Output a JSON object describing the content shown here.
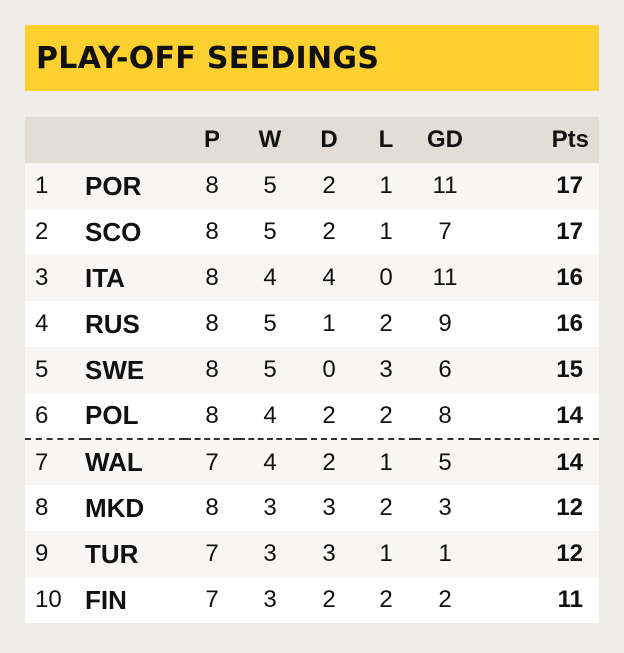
{
  "title": "PLAY-OFF SEEDINGS",
  "columns": [
    "P",
    "W",
    "D",
    "L",
    "GD",
    "Pts"
  ],
  "rows": [
    {
      "pos": "1",
      "team": "POR",
      "p": "8",
      "w": "5",
      "d": "2",
      "l": "1",
      "gd": "11",
      "pts": "17"
    },
    {
      "pos": "2",
      "team": "SCO",
      "p": "8",
      "w": "5",
      "d": "2",
      "l": "1",
      "gd": "7",
      "pts": "17"
    },
    {
      "pos": "3",
      "team": "ITA",
      "p": "8",
      "w": "4",
      "d": "4",
      "l": "0",
      "gd": "11",
      "pts": "16"
    },
    {
      "pos": "4",
      "team": "RUS",
      "p": "8",
      "w": "5",
      "d": "1",
      "l": "2",
      "gd": "9",
      "pts": "16"
    },
    {
      "pos": "5",
      "team": "SWE",
      "p": "8",
      "w": "5",
      "d": "0",
      "l": "3",
      "gd": "6",
      "pts": "15"
    },
    {
      "pos": "6",
      "team": "POL",
      "p": "8",
      "w": "4",
      "d": "2",
      "l": "2",
      "gd": "8",
      "pts": "14"
    },
    {
      "pos": "7",
      "team": "WAL",
      "p": "7",
      "w": "4",
      "d": "2",
      "l": "1",
      "gd": "5",
      "pts": "14"
    },
    {
      "pos": "8",
      "team": "MKD",
      "p": "8",
      "w": "3",
      "d": "3",
      "l": "2",
      "gd": "3",
      "pts": "12"
    },
    {
      "pos": "9",
      "team": "TUR",
      "p": "7",
      "w": "3",
      "d": "3",
      "l": "1",
      "gd": "1",
      "pts": "12"
    },
    {
      "pos": "10",
      "team": "FIN",
      "p": "7",
      "w": "3",
      "d": "2",
      "l": "2",
      "gd": "2",
      "pts": "11"
    }
  ],
  "colors": {
    "title_bg": "#fcd12f",
    "header_bg": "#e2ded7",
    "page_bg": "#efedea"
  }
}
